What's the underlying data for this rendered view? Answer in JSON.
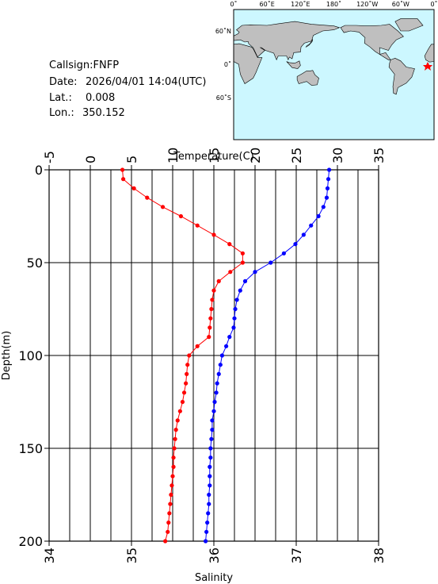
{
  "info": {
    "callsign": "Callsign:FNFP",
    "date_label": "Date:",
    "date": "2026/04/01 14:04(UTC)",
    "lat_label": "Lat.:",
    "lat": "0.008",
    "lon_label": "Lon.:",
    "lon": "350.152"
  },
  "map": {
    "lon_labels": [
      "0˚",
      "60˚E",
      "120˚E",
      "180˚",
      "120˚W",
      "60˚W",
      "0˚"
    ],
    "lat_labels": [
      "60˚N",
      "0˚",
      "60˚S"
    ]
  },
  "chart_data": {
    "type": "profile",
    "xlabel": "Temperature(C)",
    "x2label": "Salinity",
    "ylabel": "Depth(m)",
    "xlim": [
      -5,
      35
    ],
    "xticks": [
      -5,
      0,
      5,
      10,
      15,
      20,
      25,
      30,
      35
    ],
    "x2lim": [
      34,
      38
    ],
    "x2ticks": [
      34,
      35,
      36,
      37,
      38
    ],
    "ylim": [
      0,
      200
    ],
    "yticks": [
      0,
      50,
      100,
      150,
      200
    ],
    "y_inverted": true,
    "grid": true,
    "grid_x_step": 2.5,
    "depth": [
      0,
      5,
      10,
      15,
      20,
      25,
      30,
      35,
      40,
      45,
      50,
      55,
      60,
      65,
      70,
      75,
      80,
      85,
      90,
      95,
      100,
      105,
      110,
      115,
      120,
      125,
      130,
      135,
      140,
      145,
      150,
      155,
      160,
      165,
      170,
      175,
      180,
      185,
      190,
      195,
      200
    ],
    "series": [
      {
        "color": "#0000ff",
        "axis": "x",
        "values": [
          29.0,
          28.9,
          28.8,
          28.7,
          28.3,
          27.7,
          26.8,
          25.9,
          24.9,
          23.5,
          21.9,
          20.0,
          18.8,
          18.2,
          17.8,
          17.6,
          17.5,
          17.4,
          16.9,
          16.5,
          16.0,
          15.8,
          15.6,
          15.4,
          15.3,
          15.1,
          15.0,
          14.8,
          14.8,
          14.7,
          14.6,
          14.6,
          14.5,
          14.5,
          14.5,
          14.4,
          14.4,
          14.3,
          14.2,
          14.1,
          14.0
        ]
      },
      {
        "color": "#ff0000",
        "axis": "x2",
        "values": [
          34.89,
          34.9,
          35.03,
          35.19,
          35.38,
          35.6,
          35.8,
          36.0,
          36.19,
          36.35,
          36.35,
          36.2,
          36.06,
          36.0,
          35.98,
          35.97,
          35.96,
          35.95,
          35.94,
          35.8,
          35.7,
          35.68,
          35.67,
          35.66,
          35.64,
          35.62,
          35.59,
          35.56,
          35.54,
          35.53,
          35.52,
          35.51,
          35.51,
          35.5,
          35.49,
          35.48,
          35.47,
          35.46,
          35.45,
          35.44,
          35.41
        ]
      }
    ]
  }
}
